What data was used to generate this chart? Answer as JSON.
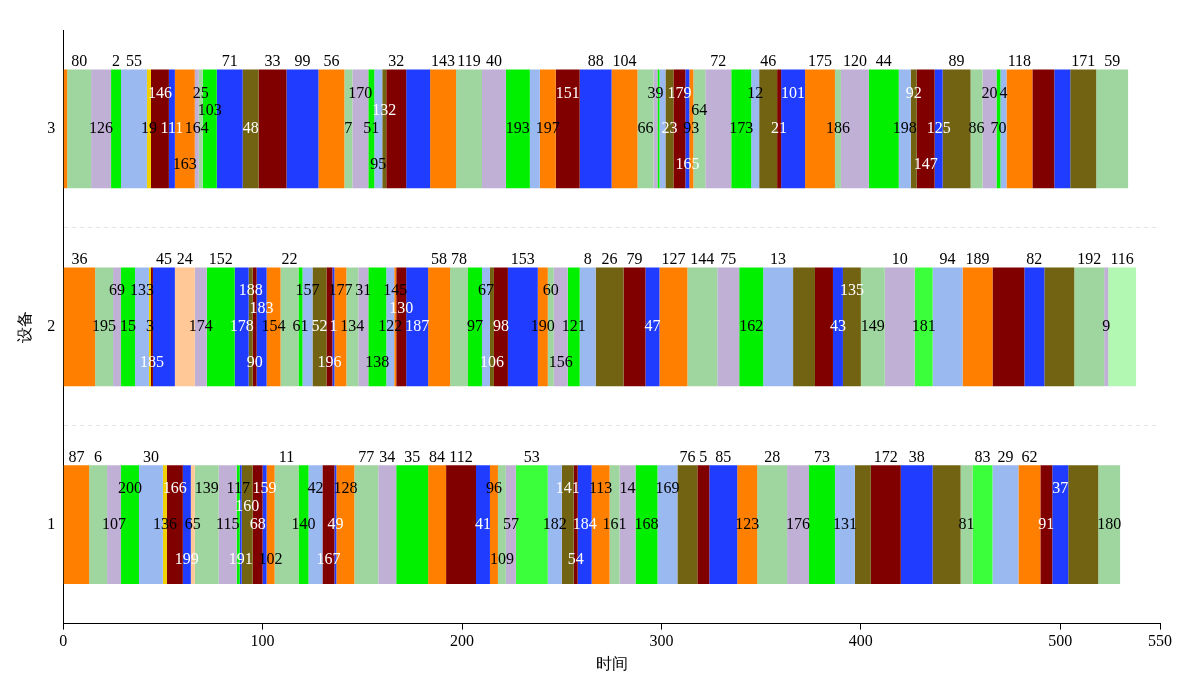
{
  "chart_data": {
    "type": "bar",
    "orientation": "horizontal",
    "stacked": true,
    "xlabel": "时间",
    "ylabel": "设备",
    "categories": [
      "3",
      "2",
      "1"
    ],
    "xlim": [
      0,
      550
    ],
    "xticks": [
      0,
      100,
      200,
      300,
      400,
      500,
      550
    ],
    "grid": "y",
    "series": [
      {
        "color": "#ff8000",
        "values": [
          2,
          null,
          null
        ]
      },
      {
        "name": "80",
        "color": "#9fd59f",
        "values": [
          12,
          null,
          null
        ]
      },
      {
        "name": "126",
        "color": "#c0b0d6",
        "values": [
          10,
          null,
          null
        ]
      },
      {
        "name": "2",
        "color": "#00f000",
        "values": [
          5,
          null,
          null
        ]
      },
      {
        "name": "55",
        "color": "#9ab9f1",
        "values": [
          13,
          null,
          null
        ]
      },
      {
        "name": "19",
        "color": "#f0d000",
        "values": [
          2,
          null,
          null
        ]
      },
      {
        "name": "146",
        "color": "#800000",
        "values": [
          9,
          null,
          null
        ]
      },
      {
        "name": "111",
        "color": "#1f3cff",
        "values": [
          3,
          null,
          null
        ]
      },
      {
        "name": "163",
        "color": "#ff8000",
        "values": [
          10,
          null,
          null
        ]
      },
      {
        "name": "164",
        "color": "#c0b0d6",
        "values": [
          2,
          null,
          null
        ]
      },
      {
        "name": "25",
        "color": "#9fd59f",
        "values": [
          2,
          null,
          null
        ]
      },
      {
        "name": "103",
        "color": "#00f000",
        "values": [
          7,
          null,
          null
        ]
      },
      {
        "name": "71",
        "color": "#1f3cff",
        "values": [
          13,
          null,
          null
        ]
      },
      {
        "name": "48",
        "color": "#716311",
        "values": [
          8,
          null,
          null
        ]
      },
      {
        "name": "33",
        "color": "#800000",
        "values": [
          14,
          null,
          null
        ]
      },
      {
        "name": "99",
        "color": "#1f3cff",
        "values": [
          16,
          null,
          null
        ]
      },
      {
        "name": "56",
        "color": "#ff8000",
        "values": [
          13,
          null,
          null
        ]
      },
      {
        "name": "7",
        "color": "#9fd59f",
        "values": [
          4,
          null,
          null
        ]
      },
      {
        "name": "170",
        "color": "#c0b0d6",
        "values": [
          8,
          null,
          null
        ]
      },
      {
        "name": "51",
        "color": "#00f000",
        "values": [
          3,
          null,
          null
        ]
      },
      {
        "name": "95",
        "color": "#9ab9f1",
        "values": [
          4,
          null,
          null
        ]
      },
      {
        "name": "132",
        "color": "#716311",
        "values": [
          2,
          null,
          null
        ]
      },
      {
        "name": "32",
        "color": "#800000",
        "values": [
          10,
          null,
          null
        ]
      },
      {
        "color": "#1f3cff",
        "values": [
          12,
          null,
          null
        ]
      },
      {
        "name": "143",
        "color": "#ff8000",
        "values": [
          13,
          null,
          null
        ]
      },
      {
        "name": "119",
        "color": "#9fd59f",
        "values": [
          13,
          null,
          null
        ]
      },
      {
        "name": "40",
        "color": "#c0b0d6",
        "values": [
          12,
          null,
          null
        ]
      },
      {
        "name": "193",
        "color": "#00f000",
        "values": [
          12,
          null,
          null
        ]
      },
      {
        "color": "#9ab9f1",
        "values": [
          5,
          null,
          null
        ]
      },
      {
        "name": "197",
        "color": "#ff8000",
        "values": [
          8,
          null,
          null
        ]
      },
      {
        "name": "151",
        "color": "#800000",
        "values": [
          12,
          null,
          null
        ]
      },
      {
        "name": "88",
        "color": "#1f3cff",
        "values": [
          16,
          null,
          null
        ]
      },
      {
        "name": "104",
        "color": "#ff8000",
        "values": [
          13,
          null,
          null
        ]
      },
      {
        "name": "66",
        "color": "#9fd59f",
        "values": [
          8,
          null,
          null
        ]
      },
      {
        "name": "39",
        "color": "#c0b0d6",
        "values": [
          2,
          null,
          null
        ]
      },
      {
        "color": "#00f000",
        "values": [
          1,
          null,
          null
        ]
      },
      {
        "color": "#9ab9f1",
        "values": [
          3,
          null,
          null
        ]
      },
      {
        "name": "23",
        "color": "#716311",
        "values": [
          4,
          null,
          null
        ]
      },
      {
        "name": "179",
        "color": "#800000",
        "values": [
          6,
          null,
          null
        ]
      },
      {
        "name": "165",
        "color": "#1f3cff",
        "values": [
          2,
          null,
          null
        ]
      },
      {
        "name": "93",
        "color": "#ff8000",
        "values": [
          2,
          null,
          null
        ]
      },
      {
        "name": "64",
        "color": "#9fd59f",
        "values": [
          6,
          null,
          null
        ]
      },
      {
        "name": "72",
        "color": "#c0b0d6",
        "values": [
          13,
          null,
          null
        ]
      },
      {
        "name": "173",
        "color": "#00f000",
        "values": [
          10,
          null,
          null
        ]
      },
      {
        "name": "12",
        "color": "#9ab9f1",
        "values": [
          4,
          null,
          null
        ]
      },
      {
        "name": "46",
        "color": "#716311",
        "values": [
          9,
          null,
          null
        ]
      },
      {
        "name": "21",
        "color": "#800000",
        "values": [
          2,
          null,
          null
        ]
      },
      {
        "name": "101",
        "color": "#1f3cff",
        "values": [
          12,
          null,
          null
        ]
      },
      {
        "name": "175",
        "color": "#ff8000",
        "values": [
          15,
          null,
          null
        ]
      },
      {
        "name": "186",
        "color": "#9fd59f",
        "values": [
          3,
          null,
          null
        ]
      },
      {
        "name": "120",
        "color": "#c0b0d6",
        "values": [
          14,
          null,
          null
        ]
      },
      {
        "name": "44",
        "color": "#00f000",
        "values": [
          15,
          null,
          null
        ]
      },
      {
        "name": "198",
        "color": "#9ab9f1",
        "values": [
          6,
          null,
          null
        ]
      },
      {
        "name": "92",
        "color": "#716311",
        "values": [
          3,
          null,
          null
        ]
      },
      {
        "name": "147",
        "color": "#800000",
        "values": [
          9,
          null,
          null
        ]
      },
      {
        "name": "125",
        "color": "#1f3cff",
        "values": [
          4,
          null,
          null
        ]
      },
      {
        "name": "89",
        "color": "#716311",
        "values": [
          14,
          null,
          null
        ]
      },
      {
        "name": "86",
        "color": "#9fd59f",
        "values": [
          6,
          null,
          null
        ]
      },
      {
        "name": "20",
        "color": "#c0b0d6",
        "values": [
          7,
          null,
          null
        ]
      },
      {
        "name": "70",
        "color": "#00f000",
        "values": [
          2,
          null,
          null
        ]
      },
      {
        "name": "4",
        "color": "#9ab9f1",
        "values": [
          3,
          null,
          null
        ]
      },
      {
        "name": "118",
        "color": "#ff8000",
        "values": [
          13,
          null,
          null
        ]
      },
      {
        "color": "#800000",
        "values": [
          11,
          null,
          null
        ]
      },
      {
        "color": "#1f3cff",
        "values": [
          8,
          null,
          null
        ]
      },
      {
        "name": "171",
        "color": "#716311",
        "values": [
          13,
          null,
          null
        ]
      },
      {
        "name": "59",
        "color": "#9fd59f",
        "values": [
          16,
          null,
          null
        ]
      },
      {
        "name": "36",
        "color": "#ff8000",
        "values": [
          null,
          16,
          null
        ]
      },
      {
        "name": "195",
        "color": "#9fd59f",
        "values": [
          null,
          9,
          null
        ]
      },
      {
        "name": "69",
        "color": "#c0b0d6",
        "values": [
          null,
          4,
          null
        ]
      },
      {
        "name": "15",
        "color": "#00f000",
        "values": [
          null,
          7,
          null
        ]
      },
      {
        "name": "133",
        "color": "#9ab9f1",
        "values": [
          null,
          7,
          null
        ]
      },
      {
        "name": "3",
        "color": "#f0d000",
        "values": [
          null,
          1,
          null
        ]
      },
      {
        "name": "185",
        "color": "#800000",
        "values": [
          null,
          1,
          null
        ]
      },
      {
        "name": "45",
        "color": "#1f3cff",
        "values": [
          null,
          11,
          null
        ]
      },
      {
        "name": "24",
        "color": "#ffc896",
        "values": [
          null,
          10,
          null
        ]
      },
      {
        "name": "174",
        "color": "#c0b0d6",
        "values": [
          null,
          6,
          null
        ]
      },
      {
        "name": "152",
        "color": "#00f000",
        "values": [
          null,
          14,
          null
        ]
      },
      {
        "name": "178",
        "color": "#1f3cff",
        "values": [
          null,
          7,
          null
        ]
      },
      {
        "name": "188",
        "color": "#716311",
        "values": [
          null,
          2,
          null
        ]
      },
      {
        "name": "90",
        "color": "#800000",
        "values": [
          null,
          2,
          null
        ]
      },
      {
        "name": "183",
        "color": "#1f3cff",
        "values": [
          null,
          5,
          null
        ]
      },
      {
        "name": "154",
        "color": "#ff8000",
        "values": [
          null,
          7,
          null
        ]
      },
      {
        "name": "22",
        "color": "#9fd59f",
        "values": [
          null,
          9,
          null
        ]
      },
      {
        "name": "61",
        "color": "#00f000",
        "values": [
          null,
          2,
          null
        ]
      },
      {
        "name": "157",
        "color": "#9ab9f1",
        "values": [
          null,
          5,
          null
        ]
      },
      {
        "name": "52",
        "color": "#716311",
        "values": [
          null,
          7,
          null
        ]
      },
      {
        "name": "196",
        "color": "#800000",
        "values": [
          null,
          3,
          null
        ]
      },
      {
        "name": "1",
        "color": "#1f3cff",
        "values": [
          null,
          1,
          null
        ]
      },
      {
        "name": "177",
        "color": "#ff8000",
        "values": [
          null,
          6,
          null
        ]
      },
      {
        "name": "134",
        "color": "#9fd59f",
        "values": [
          null,
          6,
          null
        ]
      },
      {
        "name": "31",
        "color": "#c0b0d6",
        "values": [
          null,
          5,
          null
        ]
      },
      {
        "name": "138",
        "color": "#00f000",
        "values": [
          null,
          9,
          null
        ]
      },
      {
        "name": "122",
        "color": "#9ab9f1",
        "values": [
          null,
          4,
          null
        ]
      },
      {
        "name": "145",
        "color": "#ff8000",
        "values": [
          null,
          1,
          null
        ]
      },
      {
        "name": "130",
        "color": "#800000",
        "values": [
          null,
          5,
          null
        ]
      },
      {
        "name": "187",
        "color": "#1f3cff",
        "values": [
          null,
          11,
          null
        ]
      },
      {
        "name": "58",
        "color": "#ff8000",
        "values": [
          null,
          11,
          null
        ]
      },
      {
        "name": "78",
        "color": "#9fd59f",
        "values": [
          null,
          9,
          null
        ]
      },
      {
        "name": "97",
        "color": "#00f000",
        "values": [
          null,
          7,
          null
        ]
      },
      {
        "name": "67",
        "color": "#9ab9f1",
        "values": [
          null,
          4,
          null
        ]
      },
      {
        "name": "106",
        "color": "#716311",
        "values": [
          null,
          2,
          null
        ]
      },
      {
        "name": "98",
        "color": "#800000",
        "values": [
          null,
          7,
          null
        ]
      },
      {
        "name": "153",
        "color": "#1f3cff",
        "values": [
          null,
          15,
          null
        ]
      },
      {
        "name": "190",
        "color": "#ff8000",
        "values": [
          null,
          5,
          null
        ]
      },
      {
        "name": "60",
        "color": "#9fd59f",
        "values": [
          null,
          3,
          null
        ]
      },
      {
        "name": "156",
        "color": "#c0b0d6",
        "values": [
          null,
          7,
          null
        ]
      },
      {
        "name": "121",
        "color": "#00f000",
        "values": [
          null,
          6,
          null
        ]
      },
      {
        "name": "8",
        "color": "#9ab9f1",
        "values": [
          null,
          8,
          null
        ]
      },
      {
        "name": "26",
        "color": "#716311",
        "values": [
          null,
          14,
          null
        ]
      },
      {
        "name": "79",
        "color": "#800000",
        "values": [
          null,
          11,
          null
        ]
      },
      {
        "name": "47",
        "color": "#1f3cff",
        "values": [
          null,
          7,
          null
        ]
      },
      {
        "name": "127",
        "color": "#ff8000",
        "values": [
          null,
          14,
          null
        ]
      },
      {
        "name": "144",
        "color": "#9fd59f",
        "values": [
          null,
          15,
          null
        ]
      },
      {
        "name": "75",
        "color": "#c0b0d6",
        "values": [
          null,
          11,
          null
        ]
      },
      {
        "name": "162",
        "color": "#00f000",
        "values": [
          null,
          12,
          null
        ]
      },
      {
        "name": "13",
        "color": "#9ab9f1",
        "values": [
          null,
          15,
          null
        ]
      },
      {
        "color": "#716311",
        "values": [
          null,
          11,
          null
        ]
      },
      {
        "color": "#800000",
        "values": [
          null,
          9,
          null
        ]
      },
      {
        "name": "43",
        "color": "#1f3cff",
        "values": [
          null,
          5,
          null
        ]
      },
      {
        "name": "135",
        "color": "#716311",
        "values": [
          null,
          9,
          null
        ]
      },
      {
        "name": "149",
        "color": "#9fd59f",
        "values": [
          null,
          12,
          null
        ]
      },
      {
        "name": "10",
        "color": "#c0b0d6",
        "values": [
          null,
          15,
          null
        ]
      },
      {
        "name": "181",
        "color": "#3cff3c",
        "values": [
          null,
          9,
          null
        ]
      },
      {
        "name": "94",
        "color": "#9ab9f1",
        "values": [
          null,
          15,
          null
        ]
      },
      {
        "name": "189",
        "color": "#ff8000",
        "values": [
          null,
          15,
          null
        ]
      },
      {
        "color": "#800000",
        "values": [
          null,
          16,
          null
        ]
      },
      {
        "name": "82",
        "color": "#1f3cff",
        "values": [
          null,
          10,
          null
        ]
      },
      {
        "color": "#716311",
        "values": [
          null,
          15,
          null
        ]
      },
      {
        "name": "192",
        "color": "#9fd59f",
        "values": [
          null,
          15,
          null
        ]
      },
      {
        "name": "9",
        "color": "#c0b0d6",
        "values": [
          null,
          2,
          null
        ]
      },
      {
        "name": "116",
        "color": "#b2f8b2",
        "values": [
          null,
          14,
          null
        ]
      },
      {
        "name": "87",
        "color": "#ff8000",
        "values": [
          null,
          null,
          13
        ]
      },
      {
        "name": "6",
        "color": "#9fd59f",
        "values": [
          null,
          null,
          9
        ]
      },
      {
        "name": "107",
        "color": "#c0b0d6",
        "values": [
          null,
          null,
          7
        ]
      },
      {
        "name": "200",
        "color": "#00f000",
        "values": [
          null,
          null,
          9
        ]
      },
      {
        "name": "30",
        "color": "#9ab9f1",
        "values": [
          null,
          null,
          12
        ]
      },
      {
        "name": "136",
        "color": "#f0d000",
        "values": [
          null,
          null,
          2
        ]
      },
      {
        "name": "166",
        "color": "#800000",
        "values": [
          null,
          null,
          8
        ]
      },
      {
        "name": "199",
        "color": "#1f3cff",
        "values": [
          null,
          null,
          4
        ]
      },
      {
        "name": "65",
        "color": "#ffc896",
        "values": [
          null,
          null,
          2
        ]
      },
      {
        "name": "139",
        "color": "#9fd59f",
        "values": [
          null,
          null,
          12
        ]
      },
      {
        "name": "115",
        "color": "#c0b0d6",
        "values": [
          null,
          null,
          9
        ]
      },
      {
        "name": "117",
        "color": "#00f000",
        "values": [
          null,
          null,
          1.5
        ]
      },
      {
        "name": "191",
        "color": "#1f3cff",
        "values": [
          null,
          null,
          1
        ]
      },
      {
        "name": "160",
        "color": "#716311",
        "values": [
          null,
          null,
          5.5
        ]
      },
      {
        "name": "68",
        "color": "#800000",
        "values": [
          null,
          null,
          5
        ]
      },
      {
        "name": "159",
        "color": "#1f3cff",
        "values": [
          null,
          null,
          2
        ]
      },
      {
        "name": "102",
        "color": "#ff8000",
        "values": [
          null,
          null,
          4
        ]
      },
      {
        "name": "11",
        "color": "#9fd59f",
        "values": [
          null,
          null,
          12
        ]
      },
      {
        "name": "140",
        "color": "#00f000",
        "values": [
          null,
          null,
          5
        ]
      },
      {
        "name": "42",
        "color": "#9ab9f1",
        "values": [
          null,
          null,
          7
        ]
      },
      {
        "name": "167",
        "color": "#800000",
        "values": [
          null,
          null,
          6
        ]
      },
      {
        "name": "49",
        "color": "#1f3cff",
        "values": [
          null,
          null,
          1
        ]
      },
      {
        "name": "128",
        "color": "#ff8000",
        "values": [
          null,
          null,
          9
        ]
      },
      {
        "name": "77",
        "color": "#9fd59f",
        "values": [
          null,
          null,
          12
        ]
      },
      {
        "name": "34",
        "color": "#c0b0d6",
        "values": [
          null,
          null,
          9
        ]
      },
      {
        "name": "35",
        "color": "#00f000",
        "values": [
          null,
          null,
          16
        ]
      },
      {
        "name": "84",
        "color": "#ff8000",
        "values": [
          null,
          null,
          9
        ]
      },
      {
        "name": "112",
        "color": "#800000",
        "values": [
          null,
          null,
          15
        ]
      },
      {
        "name": "41",
        "color": "#1f3cff",
        "values": [
          null,
          null,
          7
        ]
      },
      {
        "name": "96",
        "color": "#ff8000",
        "values": [
          null,
          null,
          4
        ]
      },
      {
        "name": "109",
        "color": "#9fd59f",
        "values": [
          null,
          null,
          4
        ]
      },
      {
        "name": "57",
        "color": "#c0b0d6",
        "values": [
          null,
          null,
          5
        ]
      },
      {
        "name": "53",
        "color": "#3cff3c",
        "values": [
          null,
          null,
          16
        ]
      },
      {
        "name": "182",
        "color": "#9ab9f1",
        "values": [
          null,
          null,
          7
        ]
      },
      {
        "name": "141",
        "color": "#716311",
        "values": [
          null,
          null,
          6
        ]
      },
      {
        "name": "54",
        "color": "#800000",
        "values": [
          null,
          null,
          2
        ]
      },
      {
        "name": "184",
        "color": "#1f3cff",
        "values": [
          null,
          null,
          7
        ]
      },
      {
        "name": "113",
        "color": "#ff8000",
        "values": [
          null,
          null,
          9
        ]
      },
      {
        "name": "161",
        "color": "#9fd59f",
        "values": [
          null,
          null,
          5
        ]
      },
      {
        "name": "14",
        "color": "#c0b0d6",
        "values": [
          null,
          null,
          8
        ]
      },
      {
        "name": "168",
        "color": "#00f000",
        "values": [
          null,
          null,
          11
        ]
      },
      {
        "name": "169",
        "color": "#9ab9f1",
        "values": [
          null,
          null,
          10
        ]
      },
      {
        "name": "76",
        "color": "#716311",
        "values": [
          null,
          null,
          10
        ]
      },
      {
        "name": "5",
        "color": "#800000",
        "values": [
          null,
          null,
          6
        ]
      },
      {
        "name": "85",
        "color": "#1f3cff",
        "values": [
          null,
          null,
          14
        ]
      },
      {
        "name": "123",
        "color": "#ff8000",
        "values": [
          null,
          null,
          10
        ]
      },
      {
        "name": "28",
        "color": "#9fd59f",
        "values": [
          null,
          null,
          15
        ]
      },
      {
        "name": "176",
        "color": "#c0b0d6",
        "values": [
          null,
          null,
          11
        ]
      },
      {
        "name": "73",
        "color": "#00f000",
        "values": [
          null,
          null,
          13
        ]
      },
      {
        "name": "131",
        "color": "#9ab9f1",
        "values": [
          null,
          null,
          10
        ]
      },
      {
        "color": "#716311",
        "values": [
          null,
          null,
          8
        ]
      },
      {
        "name": "172",
        "color": "#800000",
        "values": [
          null,
          null,
          15
        ]
      },
      {
        "name": "38",
        "color": "#1f3cff",
        "values": [
          null,
          null,
          16
        ]
      },
      {
        "color": "#716311",
        "values": [
          null,
          null,
          14
        ]
      },
      {
        "name": "81",
        "color": "#9fd59f",
        "values": [
          null,
          null,
          6
        ]
      },
      {
        "name": "83",
        "color": "#3cff3c",
        "values": [
          null,
          null,
          10
        ]
      },
      {
        "name": "29",
        "color": "#9ab9f1",
        "values": [
          null,
          null,
          13
        ]
      },
      {
        "name": "62",
        "color": "#ff8000",
        "values": [
          null,
          null,
          11
        ]
      },
      {
        "name": "91",
        "color": "#800000",
        "values": [
          null,
          null,
          6
        ]
      },
      {
        "name": "37",
        "color": "#1f3cff",
        "values": [
          null,
          null,
          8
        ]
      },
      {
        "color": "#716311",
        "values": [
          null,
          null,
          15
        ]
      },
      {
        "name": "180",
        "color": "#9fd59f",
        "values": [
          null,
          null,
          11
        ]
      }
    ]
  }
}
